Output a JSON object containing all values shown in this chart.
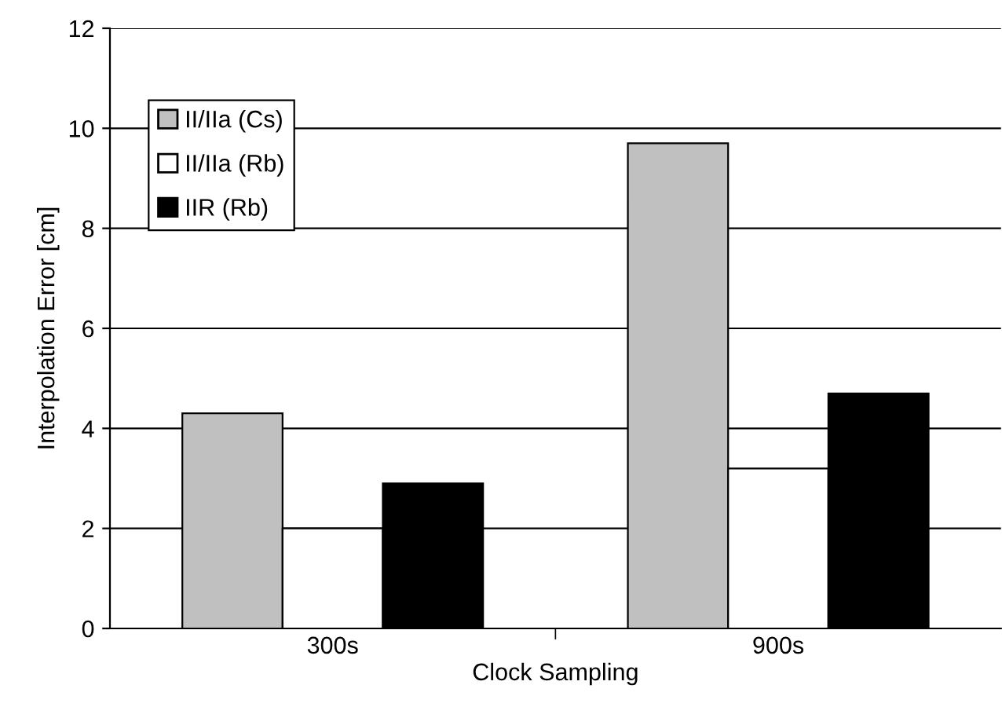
{
  "chart_data": {
    "type": "bar",
    "xlabel": "Clock Sampling",
    "ylabel": "Interpolation Error [cm]",
    "categories": [
      "300s",
      "900s"
    ],
    "series": [
      {
        "name": "II/IIa (Cs)",
        "color": "#c0c0c0",
        "values": [
          4.3,
          9.7
        ]
      },
      {
        "name": "II/IIa (Rb)",
        "color": "#ffffff",
        "values": [
          2.0,
          3.2
        ]
      },
      {
        "name": "IIR (Rb)",
        "color": "#000000",
        "values": [
          2.9,
          4.7
        ]
      }
    ],
    "ylim": [
      0,
      12
    ],
    "yticks": [
      0,
      2,
      4,
      6,
      8,
      10,
      12
    ],
    "grid": "y",
    "legend": "top left"
  }
}
